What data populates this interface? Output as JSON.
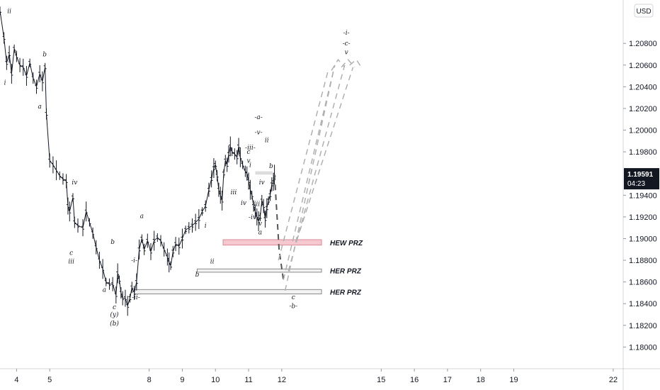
{
  "chart_data": {
    "type": "line",
    "currency_label": "USD",
    "ylim": [
      1.178,
      1.212
    ],
    "xlim": [
      3.5,
      22.3
    ],
    "y_ticks": [
      {
        "v": 1.208,
        "label": "1.20800"
      },
      {
        "v": 1.206,
        "label": "1.20600"
      },
      {
        "v": 1.204,
        "label": "1.20400"
      },
      {
        "v": 1.202,
        "label": "1.20200"
      },
      {
        "v": 1.2,
        "label": "1.20000"
      },
      {
        "v": 1.198,
        "label": "1.19800"
      },
      {
        "v": 1.194,
        "label": "1.19400"
      },
      {
        "v": 1.192,
        "label": "1.19200"
      },
      {
        "v": 1.19,
        "label": "1.19000"
      },
      {
        "v": 1.188,
        "label": "1.18800"
      },
      {
        "v": 1.186,
        "label": "1.18600"
      },
      {
        "v": 1.184,
        "label": "1.18400"
      },
      {
        "v": 1.182,
        "label": "1.18200"
      },
      {
        "v": 1.18,
        "label": "1.18000"
      }
    ],
    "x_ticks": [
      {
        "v": 4,
        "label": "4"
      },
      {
        "v": 5,
        "label": "5"
      },
      {
        "v": 8,
        "label": "8"
      },
      {
        "v": 9,
        "label": "9"
      },
      {
        "v": 10,
        "label": "10"
      },
      {
        "v": 11,
        "label": "11"
      },
      {
        "v": 12,
        "label": "12"
      },
      {
        "v": 15,
        "label": "15"
      },
      {
        "v": 16,
        "label": "16"
      },
      {
        "v": 17,
        "label": "17"
      },
      {
        "v": 18,
        "label": "18"
      },
      {
        "v": 19,
        "label": "19"
      },
      {
        "v": 22,
        "label": "22"
      }
    ],
    "current_price": {
      "value": 1.19591,
      "label": "1.19591",
      "countdown": "04:23",
      "color": "#131722"
    },
    "price_path": [
      [
        3.5,
        1.211
      ],
      [
        3.62,
        1.2085
      ],
      [
        3.7,
        1.2062
      ],
      [
        3.78,
        1.207
      ],
      [
        3.85,
        1.2052
      ],
      [
        3.93,
        1.2075
      ],
      [
        4.0,
        1.2068
      ],
      [
        4.1,
        1.206
      ],
      [
        4.2,
        1.2058
      ],
      [
        4.3,
        1.205
      ],
      [
        4.4,
        1.2062
      ],
      [
        4.5,
        1.2048
      ],
      [
        4.6,
        1.204
      ],
      [
        4.7,
        1.2052
      ],
      [
        4.78,
        1.2045
      ],
      [
        4.86,
        1.2058
      ],
      [
        4.9,
        1.2015
      ],
      [
        5.0,
        1.1972
      ],
      [
        5.1,
        1.1968
      ],
      [
        5.2,
        1.1963
      ],
      [
        5.3,
        1.1958
      ],
      [
        5.4,
        1.1955
      ],
      [
        5.5,
        1.1953
      ],
      [
        5.55,
        1.193
      ],
      [
        5.6,
        1.1925
      ],
      [
        5.7,
        1.1938
      ],
      [
        5.75,
        1.1915
      ],
      [
        5.85,
        1.1912
      ],
      [
        6.0,
        1.191
      ],
      [
        6.1,
        1.1925
      ],
      [
        6.2,
        1.1915
      ],
      [
        6.3,
        1.1905
      ],
      [
        6.4,
        1.1892
      ],
      [
        6.5,
        1.188
      ],
      [
        6.6,
        1.1872
      ],
      [
        6.7,
        1.186
      ],
      [
        6.8,
        1.1858
      ],
      [
        6.9,
        1.1858
      ],
      [
        7.0,
        1.1848
      ],
      [
        7.05,
        1.1868
      ],
      [
        7.1,
        1.1862
      ],
      [
        7.15,
        1.185
      ],
      [
        7.2,
        1.1845
      ],
      [
        7.28,
        1.1845
      ],
      [
        7.35,
        1.1838
      ],
      [
        7.42,
        1.1845
      ],
      [
        7.48,
        1.1855
      ],
      [
        7.55,
        1.185
      ],
      [
        7.62,
        1.186
      ],
      [
        7.7,
        1.189
      ],
      [
        7.78,
        1.19
      ],
      [
        7.85,
        1.189
      ],
      [
        7.95,
        1.1898
      ],
      [
        8.05,
        1.1888
      ],
      [
        8.15,
        1.1898
      ],
      [
        8.25,
        1.1901
      ],
      [
        8.35,
        1.1898
      ],
      [
        8.45,
        1.189
      ],
      [
        8.55,
        1.1883
      ],
      [
        8.6,
        1.1878
      ],
      [
        8.65,
        1.1875
      ],
      [
        8.72,
        1.1888
      ],
      [
        8.8,
        1.1895
      ],
      [
        8.9,
        1.1893
      ],
      [
        9.0,
        1.19
      ],
      [
        9.1,
        1.1908
      ],
      [
        9.2,
        1.191
      ],
      [
        9.3,
        1.1912
      ],
      [
        9.4,
        1.1915
      ],
      [
        9.5,
        1.1918
      ],
      [
        9.6,
        1.1925
      ],
      [
        9.7,
        1.193
      ],
      [
        9.8,
        1.1945
      ],
      [
        9.88,
        1.1955
      ],
      [
        9.95,
        1.1965
      ],
      [
        10.0,
        1.1968
      ],
      [
        10.05,
        1.1958
      ],
      [
        10.1,
        1.1945
      ],
      [
        10.15,
        1.194
      ],
      [
        10.2,
        1.1935
      ],
      [
        10.25,
        1.196
      ],
      [
        10.3,
        1.1972
      ],
      [
        10.35,
        1.1968
      ],
      [
        10.4,
        1.1978
      ],
      [
        10.45,
        1.1985
      ],
      [
        10.5,
        1.198
      ],
      [
        10.58,
        1.1978
      ],
      [
        10.65,
        1.1975
      ],
      [
        10.7,
        1.1985
      ],
      [
        10.75,
        1.1975
      ],
      [
        10.82,
        1.1968
      ],
      [
        10.9,
        1.1962
      ],
      [
        10.95,
        1.196
      ],
      [
        11.0,
        1.1953
      ],
      [
        11.05,
        1.1945
      ],
      [
        11.1,
        1.194
      ],
      [
        11.15,
        1.193
      ],
      [
        11.2,
        1.1925
      ],
      [
        11.25,
        1.192
      ],
      [
        11.3,
        1.1916
      ],
      [
        11.35,
        1.192
      ],
      [
        11.4,
        1.1935
      ],
      [
        11.45,
        1.193
      ],
      [
        11.5,
        1.1918
      ],
      [
        11.55,
        1.1928
      ],
      [
        11.6,
        1.1935
      ],
      [
        11.65,
        1.194
      ],
      [
        11.7,
        1.195
      ],
      [
        11.75,
        1.1952
      ],
      [
        11.78,
        1.1959
      ]
    ],
    "projections": [
      {
        "solid": false,
        "color": "#555555",
        "points": [
          [
            11.78,
            1.1959
          ],
          [
            11.92,
            1.189
          ],
          [
            12.05,
            1.1862
          ]
        ]
      },
      {
        "solid": false,
        "color": "#b0b0b0",
        "points": [
          [
            12.05,
            1.1862
          ],
          [
            13.6,
            1.206
          ]
        ]
      },
      {
        "solid": false,
        "color": "#b0b0b0",
        "points": [
          [
            12.1,
            1.1852
          ],
          [
            13.6,
            1.206
          ]
        ]
      },
      {
        "solid": false,
        "color": "#b0b0b0",
        "points": [
          [
            12.2,
            1.187
          ],
          [
            13.9,
            1.206
          ]
        ]
      },
      {
        "solid": false,
        "color": "#b0b0b0",
        "points": [
          [
            12.45,
            1.1898
          ],
          [
            14.15,
            1.2058
          ]
        ]
      },
      {
        "solid": false,
        "color": "#b0b0b0",
        "points": [
          [
            11.9,
            1.188
          ],
          [
            13.4,
            1.2055
          ]
        ]
      },
      {
        "solid": false,
        "color": "#b0b0b0",
        "points": [
          [
            13.5,
            1.2055
          ],
          [
            13.7,
            1.2065
          ],
          [
            13.9,
            1.2058
          ]
        ]
      },
      {
        "solid": false,
        "color": "#b0b0b0",
        "points": [
          [
            13.8,
            1.2058
          ],
          [
            14.0,
            1.2065
          ],
          [
            14.2,
            1.2058
          ]
        ]
      },
      {
        "solid": false,
        "color": "#b0b0b0",
        "points": [
          [
            14.05,
            1.206
          ],
          [
            14.25,
            1.2065
          ],
          [
            14.4,
            1.2058
          ]
        ]
      }
    ],
    "zones": [
      {
        "name": "HEW PRZ",
        "label": "HEW PRZ",
        "x0": 10.23,
        "x1": 13.2,
        "y0": 1.1894,
        "y1": 1.1899,
        "fill": "#f5c7cf",
        "stroke": "#d98b98"
      },
      {
        "name": "HER PRZ",
        "label": "HER PRZ",
        "x0": 9.45,
        "x1": 13.2,
        "y0": 1.1869,
        "y1": 1.1872,
        "fill": "#f2f2f2",
        "stroke": "#8a8a8a"
      },
      {
        "name": "HER PRZ",
        "label": "HER PRZ",
        "x0": 7.55,
        "x1": 13.2,
        "y0": 1.1849,
        "y1": 1.1853,
        "fill": "#f2f2f2",
        "stroke": "#8a8a8a"
      }
    ],
    "grey_box": {
      "x0": 11.2,
      "x1": 11.72,
      "y0": 1.1959,
      "y1": 1.1962,
      "fill": "#dcdcdc"
    },
    "annotations": [
      {
        "t": "ii",
        "x": 3.78,
        "y": 1.2108
      },
      {
        "t": "i",
        "x": 3.65,
        "y": 1.2042
      },
      {
        "t": "b",
        "x": 4.85,
        "y": 1.2068
      },
      {
        "t": "a",
        "x": 4.7,
        "y": 1.202
      },
      {
        "t": "iv",
        "x": 5.75,
        "y": 1.195
      },
      {
        "t": "c",
        "x": 5.65,
        "y": 1.1885
      },
      {
        "t": "iii",
        "x": 5.65,
        "y": 1.1877
      },
      {
        "t": "b",
        "x": 6.9,
        "y": 1.1895
      },
      {
        "t": "a",
        "x": 6.65,
        "y": 1.1851
      },
      {
        "t": "c",
        "x": 6.95,
        "y": 1.1835
      },
      {
        "t": "(y)",
        "x": 6.95,
        "y": 1.1828
      },
      {
        "t": "(b)",
        "x": 6.95,
        "y": 1.182
      },
      {
        "t": "-i-",
        "x": 7.55,
        "y": 1.1878
      },
      {
        "t": "-ii-",
        "x": 7.6,
        "y": 1.1844
      },
      {
        "t": "a",
        "x": 7.78,
        "y": 1.1919
      },
      {
        "t": "b",
        "x": 9.45,
        "y": 1.1865
      },
      {
        "t": "ii",
        "x": 9.9,
        "y": 1.1877
      },
      {
        "t": "i",
        "x": 9.7,
        "y": 1.191
      },
      {
        "t": "iii",
        "x": 10.55,
        "y": 1.1941
      },
      {
        "t": "iv",
        "x": 10.85,
        "y": 1.1931
      },
      {
        "t": "-iv-",
        "x": 11.15,
        "y": 1.1918
      },
      {
        "t": "-iii-",
        "x": 11.05,
        "y": 1.1982
      },
      {
        "t": "c",
        "x": 11.0,
        "y": 1.1978
      },
      {
        "t": "v",
        "x": 11.0,
        "y": 1.197
      },
      {
        "t": "i",
        "x": 11.05,
        "y": 1.1966
      },
      {
        "t": "-a-",
        "x": 11.3,
        "y": 1.201
      },
      {
        "t": "-v-",
        "x": 11.3,
        "y": 1.1996
      },
      {
        "t": "ii",
        "x": 11.55,
        "y": 1.1989
      },
      {
        "t": "b",
        "x": 11.68,
        "y": 1.1965
      },
      {
        "t": "iv",
        "x": 11.4,
        "y": 1.195
      },
      {
        "t": "iii",
        "x": 11.25,
        "y": 1.193
      },
      {
        "t": "v",
        "x": 11.35,
        "y": 1.1912
      },
      {
        "t": "a",
        "x": 11.35,
        "y": 1.1904
      },
      {
        "t": "c",
        "x": 12.35,
        "y": 1.1844
      },
      {
        "t": "-b-",
        "x": 12.35,
        "y": 1.1836
      },
      {
        "t": "-i-",
        "x": 13.95,
        "y": 1.2088
      },
      {
        "t": "-c-",
        "x": 13.95,
        "y": 1.2078
      },
      {
        "t": "v",
        "x": 13.95,
        "y": 1.207
      }
    ]
  }
}
